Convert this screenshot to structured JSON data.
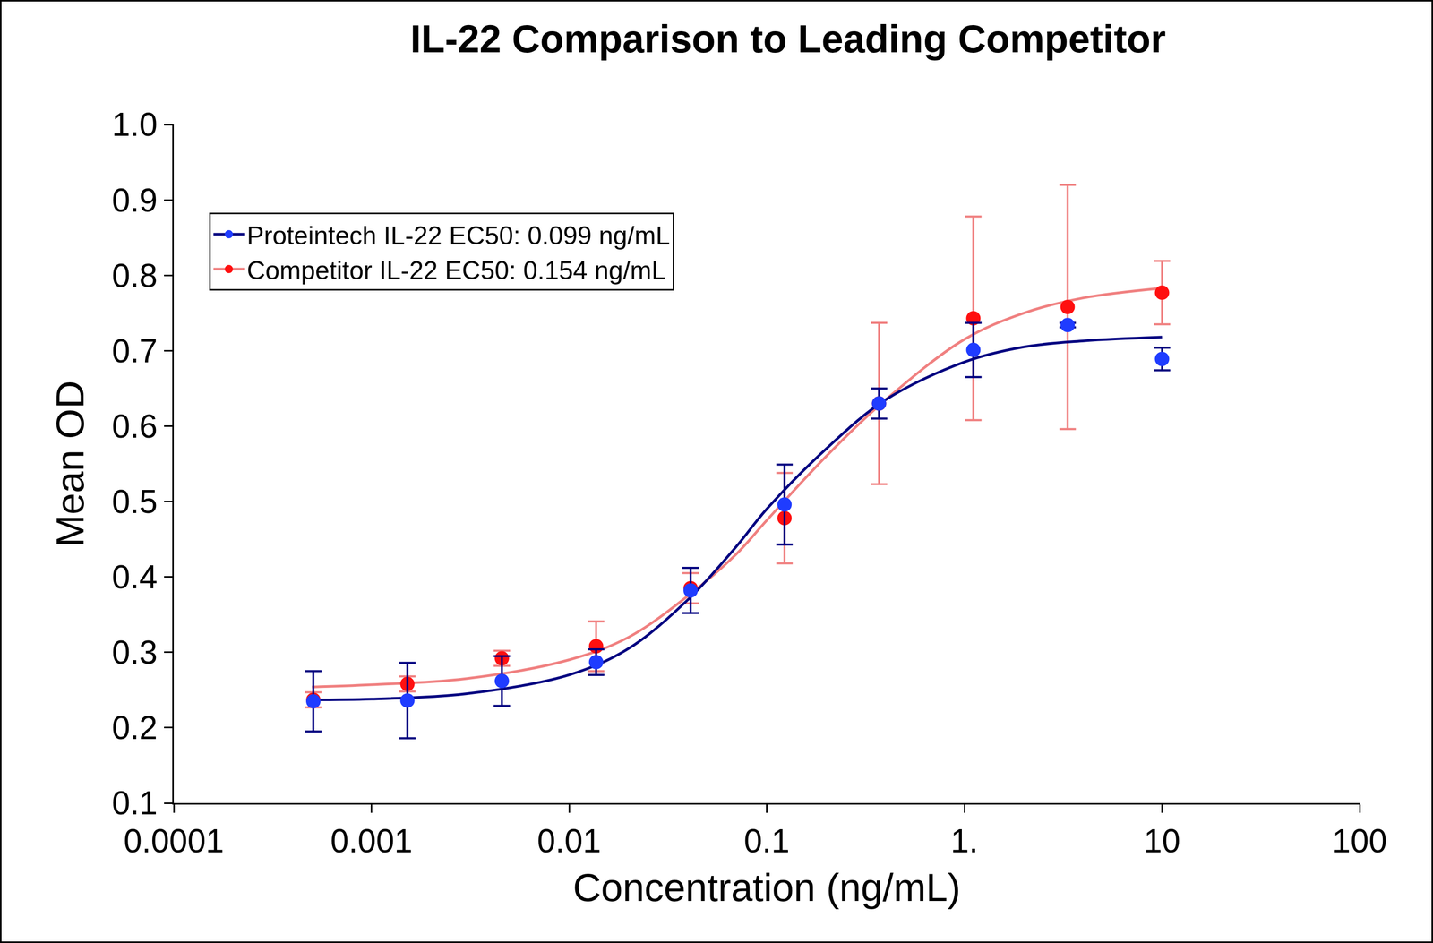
{
  "chart_data": {
    "type": "scatter",
    "title": "IL-22 Comparison to Leading Competitor",
    "x_label": "Concentration (ng/mL)",
    "y_label": "Mean OD",
    "log": "x",
    "grid": false,
    "legend": "upper left",
    "marker": "circle",
    "xlim": [
      0.0001,
      100
    ],
    "xticks": [
      0.0001,
      0.001,
      0.01,
      0.1,
      {
        "value": 1,
        "label": "1."
      },
      10,
      100
    ],
    "ylim": [
      0.1,
      1.0
    ],
    "yticks": [
      0.1,
      0.2,
      0.3,
      0.4,
      0.5,
      0.6,
      0.7,
      0.8,
      0.9,
      {
        "value": 1.0,
        "label": "1.0"
      }
    ],
    "x": [
      0.000508,
      0.00152,
      0.00457,
      0.0137,
      0.0412,
      0.123,
      0.37,
      1.11,
      3.33,
      10
    ],
    "series": [
      {
        "name": "Proteintech IL-22 EC50: 0.099 ng/mL",
        "color": "#1f3cff",
        "values": [
          0.235,
          0.236,
          0.262,
          0.287,
          0.382,
          0.496,
          0.63,
          0.701,
          0.734,
          0.689
        ],
        "error": [
          0.04,
          0.05,
          0.033,
          0.017,
          0.03,
          0.053,
          0.02,
          0.036,
          0.003,
          0.015
        ],
        "fit": {
          "color": "#000080",
          "x": [
            0.0005,
            0.001,
            0.003,
            0.01,
            0.02,
            0.04,
            0.07,
            0.1,
            0.2,
            0.4,
            1,
            2,
            4,
            10
          ],
          "values": [
            0.237,
            0.238,
            0.245,
            0.27,
            0.305,
            0.37,
            0.44,
            0.49,
            0.57,
            0.635,
            0.685,
            0.705,
            0.713,
            0.718
          ]
        }
      },
      {
        "name": "Competitor IL-22 EC50: 0.154 ng/mL",
        "color": "#ff1010",
        "values": [
          0.237,
          0.258,
          0.292,
          0.308,
          0.385,
          0.478,
          0.63,
          0.743,
          0.758,
          0.777
        ],
        "error": [
          0.01,
          0.01,
          0.01,
          0.033,
          0.02,
          0.06,
          0.107,
          0.135,
          0.162,
          0.042
        ],
        "fit": {
          "color": "#f08080",
          "x": [
            0.0005,
            0.001,
            0.003,
            0.01,
            0.02,
            0.04,
            0.07,
            0.1,
            0.2,
            0.4,
            1,
            2,
            4,
            10
          ],
          "values": [
            0.254,
            0.257,
            0.265,
            0.29,
            0.32,
            0.375,
            0.43,
            0.475,
            0.56,
            0.635,
            0.715,
            0.75,
            0.77,
            0.783
          ]
        }
      }
    ]
  }
}
